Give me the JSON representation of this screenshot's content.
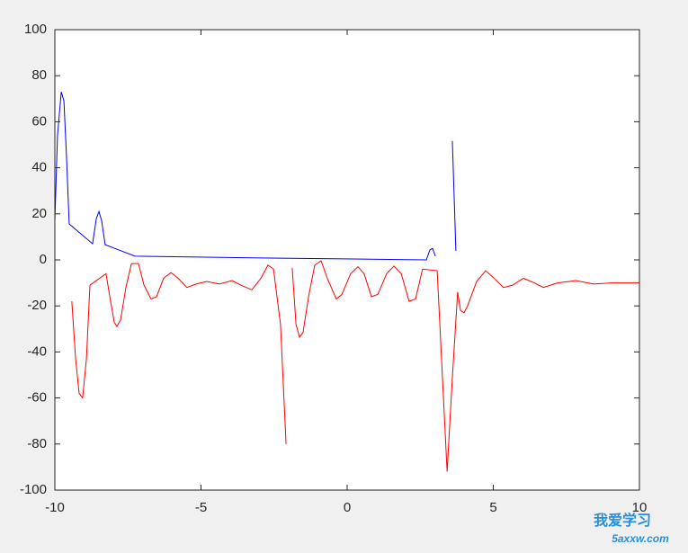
{
  "chart_data": {
    "type": "line",
    "xlim": [
      -10,
      10
    ],
    "ylim": [
      -100,
      100
    ],
    "xticks": [
      -10,
      -5,
      0,
      5,
      10
    ],
    "yticks": [
      -100,
      -80,
      -60,
      -40,
      -20,
      0,
      20,
      40,
      60,
      80,
      100
    ],
    "series": [
      {
        "color": "#0000ff",
        "x": [
          -10,
          -9.91,
          -9.78,
          -9.69,
          -9.6,
          -9.51,
          -8.71,
          -8.58,
          -8.49,
          -8.4,
          -8.28,
          -7.26,
          -2.65,
          2.71,
          2.83,
          2.92,
          3.02,
          3.3,
          3.6,
          3.72
        ],
        "values": [
          17,
          54,
          73,
          69,
          44.5,
          15.6,
          7,
          18,
          21,
          17,
          6.6,
          1.6,
          0.8,
          0,
          4.3,
          5,
          1.6,
          null,
          51.6,
          3.9
        ]
      },
      {
        "color": "#ff0000",
        "x": [
          -9.42,
          -9.29,
          -9.17,
          -9.05,
          -8.92,
          -8.8,
          -8.25,
          -8.12,
          -7.97,
          -7.88,
          -7.75,
          -7.57,
          -7.38,
          -7.14,
          -6.95,
          -6.71,
          -6.52,
          -6.28,
          -6.03,
          -5.78,
          -5.48,
          -5.17,
          -4.8,
          -4.37,
          -3.94,
          -3.63,
          -3.26,
          -2.95,
          -2.71,
          -2.52,
          -2.28,
          -2.09,
          -1.98,
          -1.88,
          -1.75,
          -1.63,
          -1.51,
          -1.32,
          -1.11,
          -0.89,
          -0.68,
          -0.37,
          -0.18,
          0.12,
          0.37,
          0.58,
          0.83,
          1.05,
          1.35,
          1.6,
          1.85,
          2.12,
          2.34,
          2.58,
          3.08,
          3.26,
          3.42,
          3.6,
          3.78,
          3.88,
          4,
          4.12,
          4.43,
          4.74,
          4.98,
          5.35,
          5.66,
          6.03,
          6.4,
          6.71,
          7.2,
          7.82,
          8.43,
          9.05,
          10
        ],
        "values": [
          -18,
          -43,
          -58,
          -60,
          -43,
          -11,
          -6,
          -16,
          -27,
          -29,
          -26,
          -12,
          -1.6,
          -1.6,
          -11,
          -17,
          -16,
          -8,
          -5.5,
          -8,
          -12,
          -10.5,
          -9.4,
          -10.5,
          -9,
          -11,
          -13,
          -8,
          -2.3,
          -4,
          -28,
          -80,
          null,
          -3.5,
          -28,
          -33.6,
          -31.6,
          -16,
          -2.3,
          -0.4,
          -8,
          -17,
          -15,
          -6,
          -3,
          -6,
          -16,
          -15,
          -6,
          -2.7,
          -6,
          -18,
          -17,
          -4,
          -4.7,
          -51,
          -92,
          -51,
          -14,
          -22,
          -23,
          -20,
          -9.4,
          -4.7,
          -7.4,
          -12,
          -11,
          -8,
          -10,
          -12,
          -10,
          -9,
          -10.5,
          -10,
          -10
        ]
      }
    ]
  },
  "watermark": {
    "title": "我爱学习",
    "url": "5axxw.com"
  }
}
